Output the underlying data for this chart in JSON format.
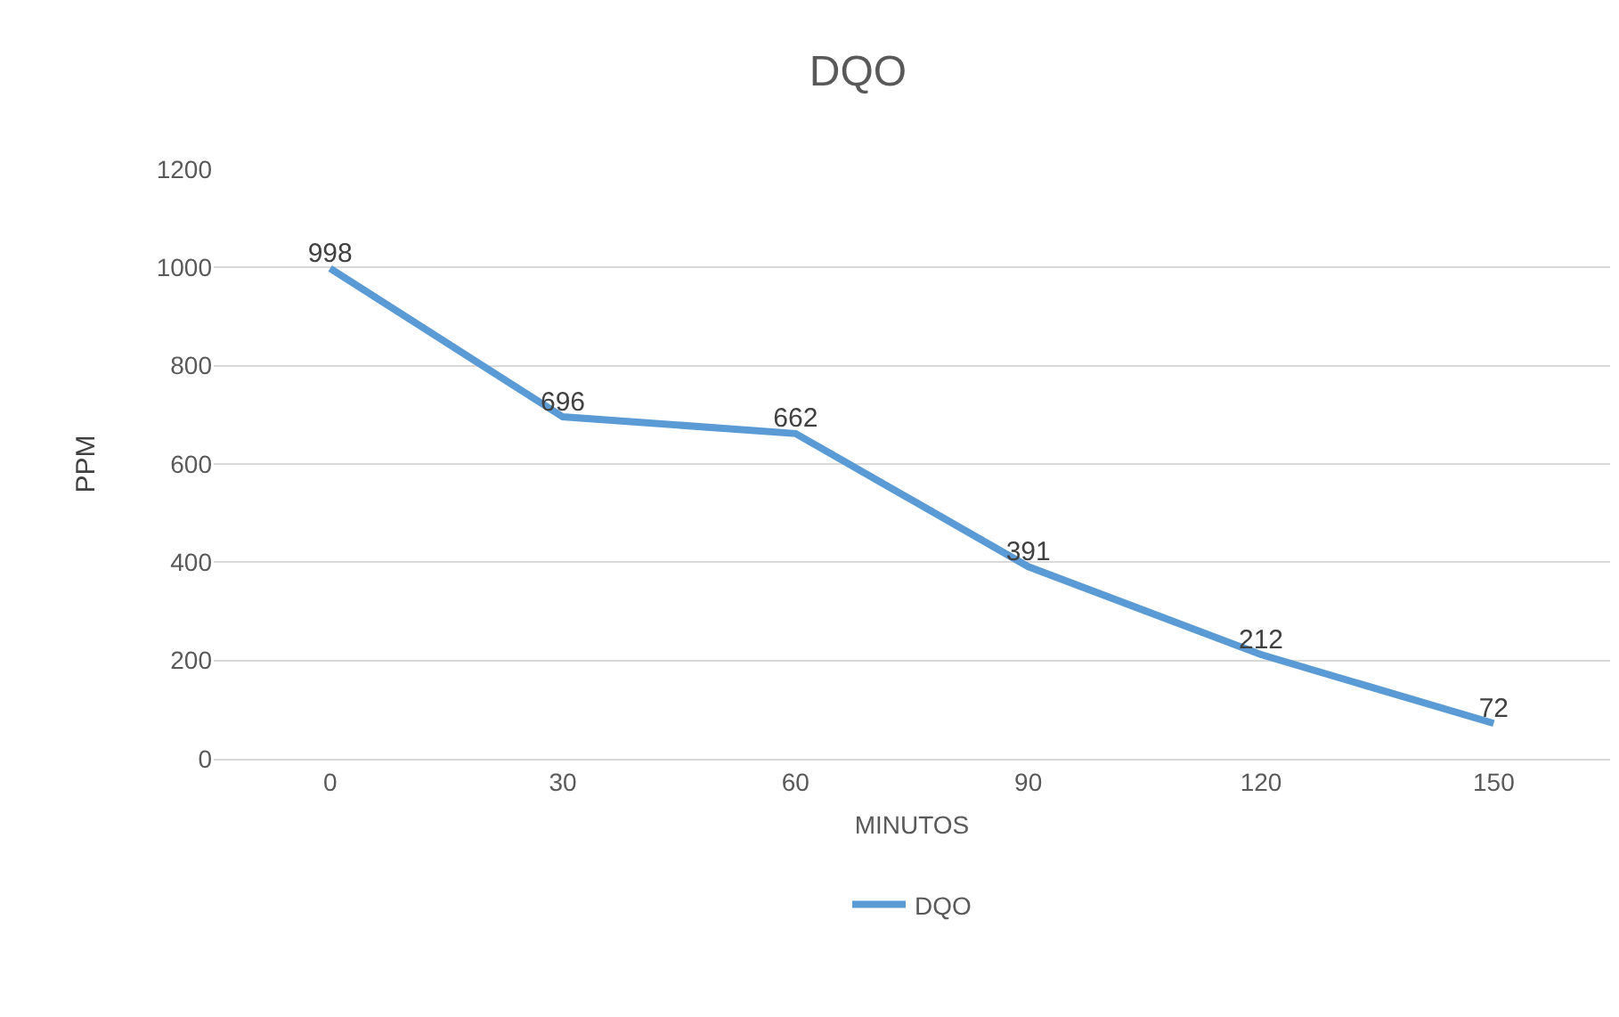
{
  "chart_data": {
    "type": "line",
    "title": "DQO",
    "xlabel": "MINUTOS",
    "ylabel": "PPM",
    "categories": [
      "0",
      "30",
      "60",
      "90",
      "120",
      "150"
    ],
    "series": [
      {
        "name": "DQO",
        "color": "#5b9bd5",
        "values": [
          998,
          696,
          662,
          391,
          212,
          72
        ]
      }
    ],
    "ylim": [
      0,
      1200
    ],
    "yticks": [
      0,
      200,
      400,
      600,
      800,
      1000,
      1200
    ],
    "grid": "y",
    "legend": "bottom",
    "data_labels": true,
    "marker": "none",
    "line_style": "solid"
  }
}
